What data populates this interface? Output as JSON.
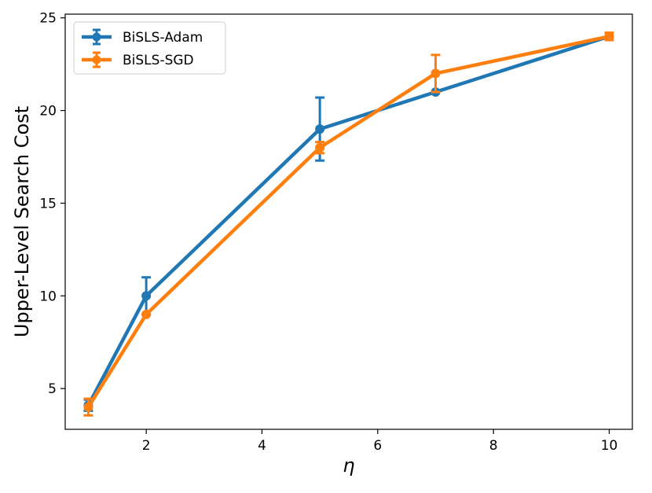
{
  "chart_data": {
    "type": "line",
    "xlabel": "η",
    "ylabel": "Upper-Level Search Cost",
    "xlim": [
      0.6,
      10.4
    ],
    "ylim": [
      2.8,
      25.2
    ],
    "xticks": [
      2,
      4,
      6,
      8,
      10
    ],
    "yticks": [
      5,
      10,
      15,
      20,
      25
    ],
    "grid": false,
    "legend_position": "top-left",
    "series": [
      {
        "name": "BiSLS-Adam",
        "color": "#1f77b4",
        "marker": "circle",
        "x": [
          1,
          2,
          5,
          7,
          10
        ],
        "y": [
          4.1,
          10.0,
          19.0,
          21.0,
          24.0
        ],
        "err": [
          0.3,
          1.0,
          1.7,
          0.0,
          0.0
        ]
      },
      {
        "name": "BiSLS-SGD",
        "color": "#ff7f0e",
        "marker": "circle",
        "x": [
          1,
          2,
          5,
          7,
          10
        ],
        "y": [
          4.0,
          9.0,
          18.0,
          22.0,
          24.0
        ],
        "err": [
          0.45,
          0.0,
          0.3,
          1.0,
          0.2
        ]
      }
    ]
  }
}
